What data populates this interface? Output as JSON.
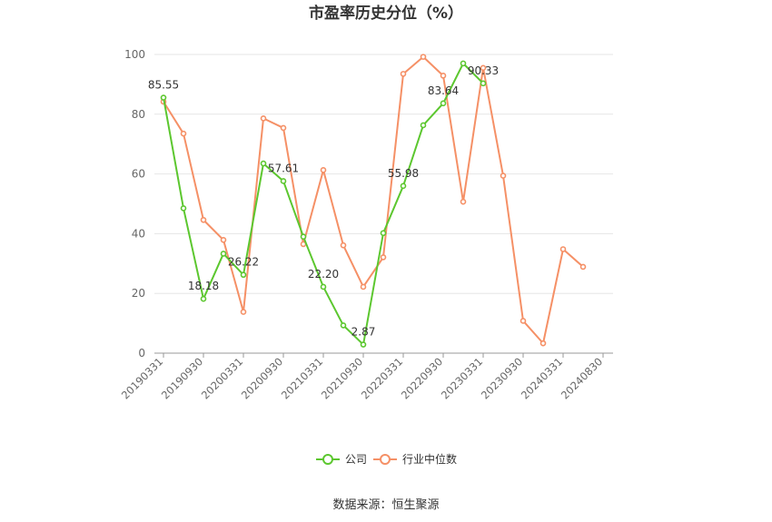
{
  "chart_data": {
    "type": "line",
    "title": "市盈率历史分位（%）",
    "source": "数据来源：恒生聚源",
    "ylim": [
      0,
      100
    ],
    "yticks": [
      0,
      20,
      40,
      60,
      80,
      100
    ],
    "x_tick_labels": [
      "20190331",
      "20190930",
      "20200331",
      "20200930",
      "20210331",
      "20210930",
      "20220331",
      "20220930",
      "20230331",
      "20230930",
      "20240331",
      "20240830"
    ],
    "legend_position": "bottom-center",
    "grid": true,
    "series": [
      {
        "name": "公司",
        "color": "#5cc72f",
        "values": [
          85.55,
          48.5,
          18.18,
          33.3,
          26.22,
          63.5,
          57.61,
          39.0,
          22.2,
          9.3,
          2.87,
          40.2,
          55.98,
          76.3,
          83.64,
          97.0,
          90.33
        ],
        "data_labels": [
          "85.55",
          null,
          "18.18",
          null,
          "26.22",
          null,
          "57.61",
          null,
          "22.20",
          null,
          "2.87",
          null,
          "55.98",
          null,
          "83.64",
          null,
          "90.33"
        ]
      },
      {
        "name": "行业中位数",
        "color": "#f59066",
        "values": [
          84.2,
          73.5,
          44.6,
          37.9,
          13.8,
          78.6,
          75.4,
          36.5,
          61.3,
          36.1,
          22.2,
          32.1,
          93.5,
          99.2,
          92.9,
          50.7,
          95.5,
          59.4,
          10.8,
          3.3,
          34.8,
          28.9
        ]
      }
    ]
  }
}
